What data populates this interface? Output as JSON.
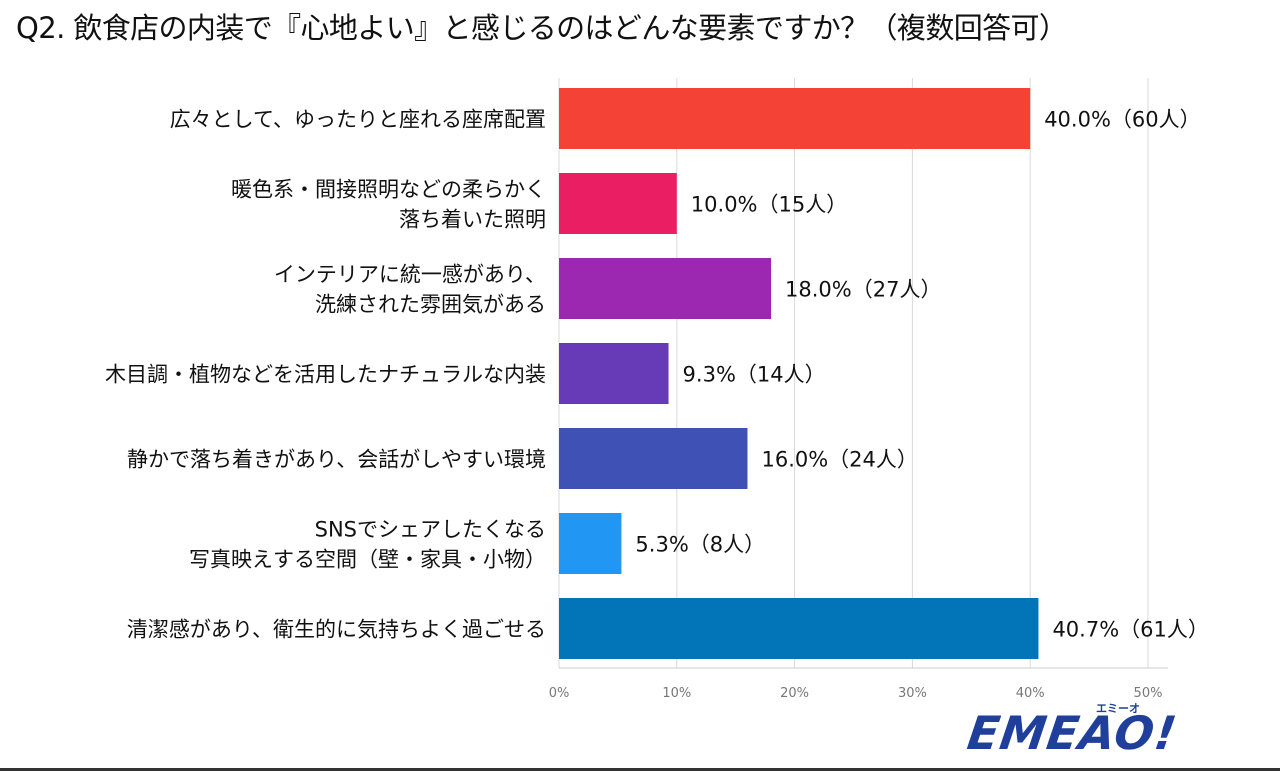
{
  "title": "Q2. 飲食店の内装で『心地よい』と感じるのはどんな要素ですか？（複数回答可）",
  "logo": {
    "main": "EMEAO!",
    "sub": "エミーオ"
  },
  "chart_data": {
    "type": "bar",
    "orientation": "horizontal",
    "title": "Q2. 飲食店の内装で『心地よい』と感じるのはどんな要素ですか？（複数回答可）",
    "xlim": [
      0,
      50
    ],
    "ticks": [
      "0%",
      "10%",
      "20%",
      "30%",
      "40%",
      "50%"
    ],
    "grid": true,
    "categories": [
      [
        "広々として、ゆったりと座れる座席配置"
      ],
      [
        "暖色系・間接照明などの柔らかく",
        "落ち着いた照明"
      ],
      [
        "インテリアに統一感があり、",
        "洗練された雰囲気がある"
      ],
      [
        "木目調・植物などを活用したナチュラルな内装"
      ],
      [
        "静かで落ち着きがあり、会話がしやすい環境"
      ],
      [
        "SNSでシェアしたくなる",
        "写真映えする空間（壁・家具・小物）"
      ],
      [
        "清潔感があり、衛生的に気持ちよく過ごせる"
      ]
    ],
    "values": [
      40.0,
      10.0,
      18.0,
      9.3,
      16.0,
      5.3,
      40.7
    ],
    "data_labels": [
      "40.0%（60人）",
      "10.0%（15人）",
      "18.0%（27人）",
      "9.3%（14人）",
      "16.0%（24人）",
      "5.3%（8人）",
      "40.7%（61人）"
    ],
    "colors": [
      "#f44336",
      "#e91e63",
      "#9c27b0",
      "#673ab7",
      "#3f51b5",
      "#2196f3",
      "#0274b8"
    ]
  }
}
